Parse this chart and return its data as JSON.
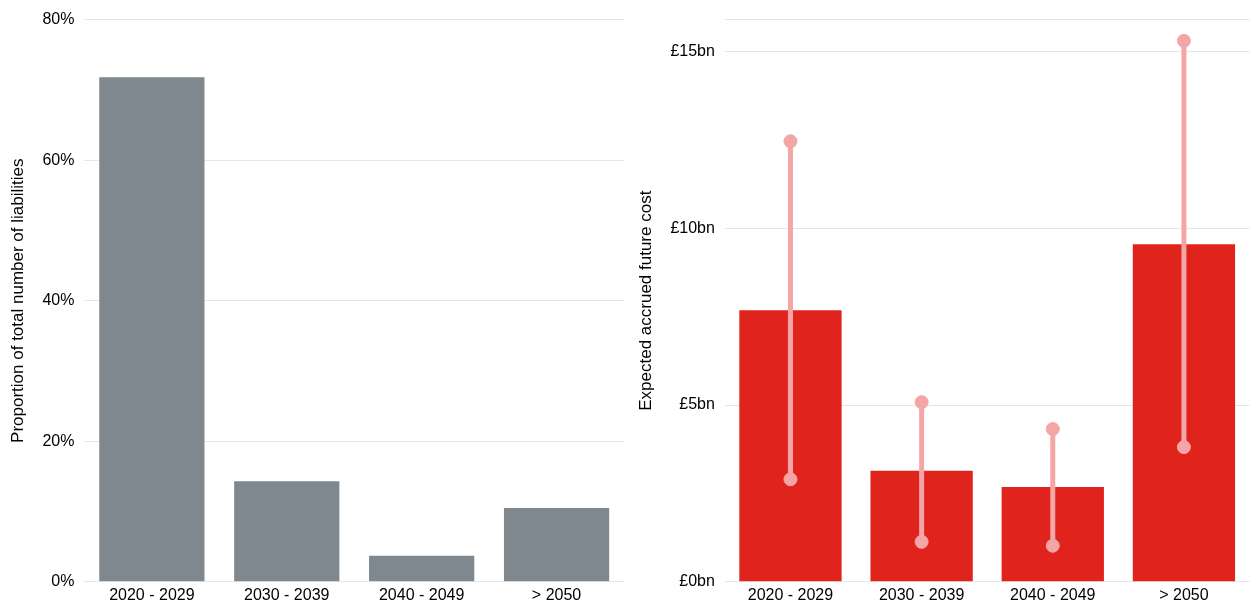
{
  "chart_data": [
    {
      "type": "bar",
      "ylabel": "Proportion of total number of liabilities",
      "categories": [
        "2020 - 2029",
        "2030 - 2039",
        "2040 - 2049",
        "> 2050"
      ],
      "series": [
        {
          "color": "#7f888e",
          "values": [
            71.8,
            14.3,
            3.7,
            10.5
          ]
        }
      ],
      "ylim": [
        0,
        80
      ],
      "yticks": [
        {
          "value": 0,
          "label": "0%"
        },
        {
          "value": 20,
          "label": "20%"
        },
        {
          "value": 40,
          "label": "40%"
        },
        {
          "value": 60,
          "label": "60%"
        },
        {
          "value": 80,
          "label": "80%"
        }
      ],
      "grid": "y",
      "legend": false
    },
    {
      "type": "bar",
      "ylabel": "Expected accrued future cost",
      "categories": [
        "2020 - 2029",
        "2030 - 2039",
        "2040 - 2049",
        "> 2050"
      ],
      "series": [
        {
          "color": "#e0231c",
          "values": [
            7.68,
            3.14,
            2.68,
            9.55
          ]
        },
        {
          "type": "scatter",
          "x": [
            "2020 - 2029",
            "2030 - 2039",
            "2040 - 2049",
            "> 2050"
          ],
          "color": "#f4a6a6",
          "marker": "circle",
          "values": [
            2.9,
            1.13,
            1.02,
            3.81
          ]
        },
        {
          "type": "scatter",
          "x": [
            "2020 - 2029",
            "2030 - 2039",
            "2040 - 2049",
            "> 2050"
          ],
          "color": "#f4a6a6",
          "marker": "circle",
          "values": [
            12.46,
            5.08,
            4.32,
            15.3
          ]
        }
      ],
      "ylim": [
        0,
        15.9
      ],
      "yticks": [
        {
          "value": 0,
          "label": "£0bn"
        },
        {
          "value": 5,
          "label": "£5bn"
        },
        {
          "value": 10,
          "label": "£10bn"
        },
        {
          "value": 15,
          "label": "£15bn"
        },
        {
          "value": 15.9,
          "label": null
        }
      ],
      "grid": "y",
      "legend": false
    }
  ]
}
